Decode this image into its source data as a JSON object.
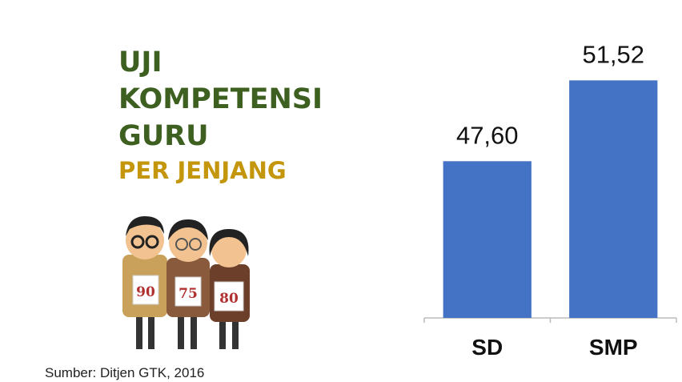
{
  "header": {
    "title_lines": [
      "UJI",
      "KOMPETENSI",
      "GURU"
    ],
    "subtitle": "PER JENJANG"
  },
  "illustration": {
    "scores": [
      "90",
      "75",
      "80"
    ]
  },
  "source": "Sumber: Ditjen GTK, 2016",
  "chart_data": {
    "type": "bar",
    "categories": [
      "SD",
      "SMP"
    ],
    "values": [
      47.6,
      51.52
    ],
    "value_labels": [
      "47,60",
      "51,52"
    ],
    "color": "#4472c4",
    "ylim": [
      40,
      52
    ]
  }
}
